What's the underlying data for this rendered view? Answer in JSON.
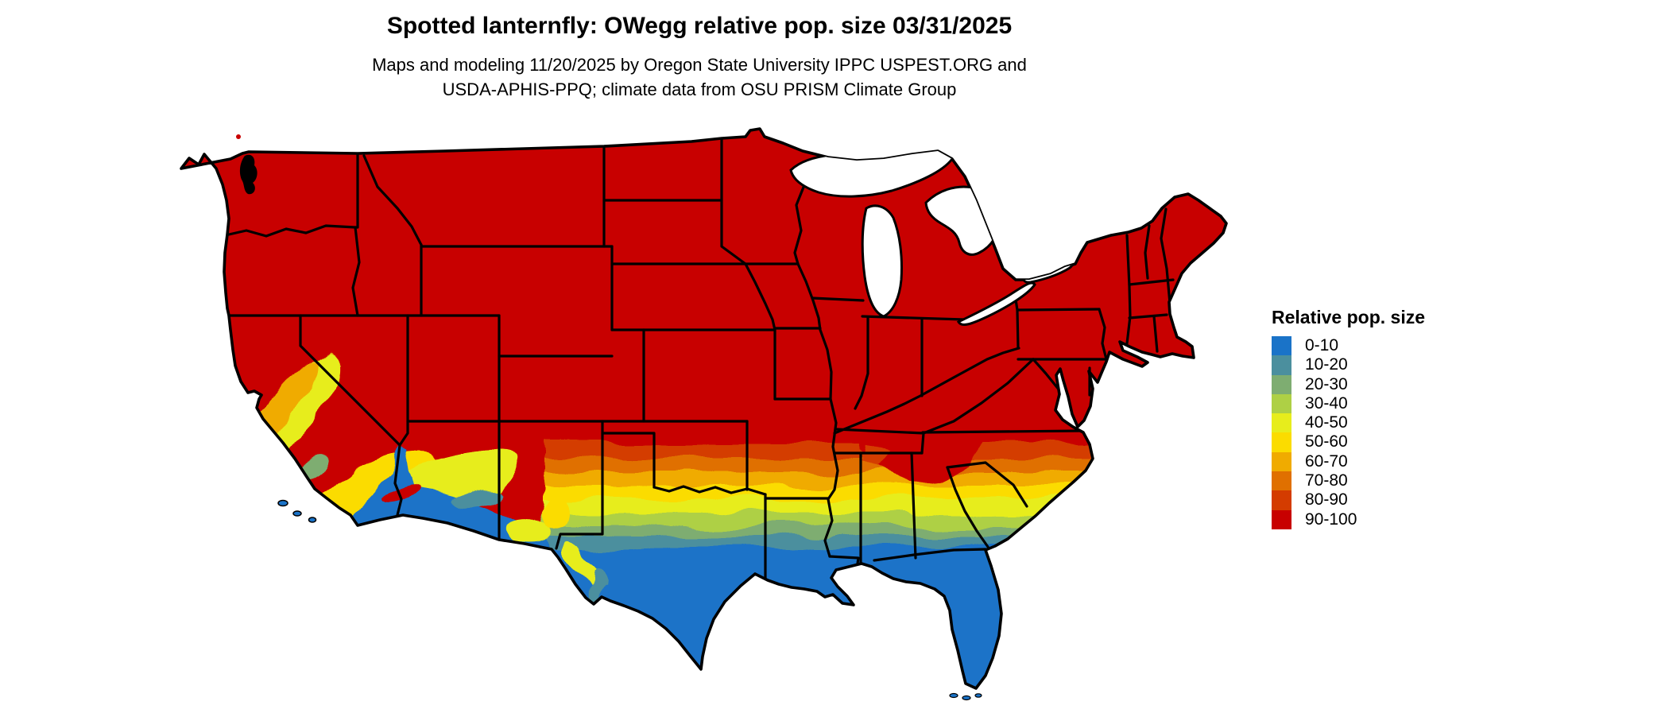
{
  "header": {
    "title": "Spotted lanternfly: OWegg relative pop. size 03/31/2025",
    "subtitle_line1": "Maps and modeling 11/20/2025 by Oregon State University IPPC USPEST.ORG and",
    "subtitle_line2": "USDA-APHIS-PPQ; climate data from OSU PRISM Climate Group"
  },
  "legend": {
    "title": "Relative pop. size",
    "items": [
      {
        "label": "0-10",
        "color": "#1a73c8"
      },
      {
        "label": "10-20",
        "color": "#4b8f9e"
      },
      {
        "label": "20-30",
        "color": "#7ead71"
      },
      {
        "label": "30-40",
        "color": "#aed045"
      },
      {
        "label": "40-50",
        "color": "#e7ed1c"
      },
      {
        "label": "50-60",
        "color": "#fbdc00"
      },
      {
        "label": "60-70",
        "color": "#f0ab00"
      },
      {
        "label": "70-80",
        "color": "#e07000"
      },
      {
        "label": "80-90",
        "color": "#d43c00"
      },
      {
        "label": "90-100",
        "color": "#c80000"
      }
    ]
  },
  "chart_data": {
    "type": "choropleth_map",
    "region": "Continental United States with state boundaries",
    "variable": "Relative pop. size",
    "classes": [
      "0-10",
      "10-20",
      "20-30",
      "30-40",
      "40-50",
      "50-60",
      "60-70",
      "70-80",
      "80-90",
      "90-100"
    ],
    "class_colors": [
      "#1a73c8",
      "#4b8f9e",
      "#7ead71",
      "#aed045",
      "#e7ed1c",
      "#fbdc00",
      "#f0ab00",
      "#e07000",
      "#d43c00",
      "#c80000"
    ],
    "visible_pattern": {
      "northern_and_central_us": "90-100 (solid red)",
      "southern_transition_belt": "bands from 80-90 down to 0-10 moving south across OK/AR/TN south to the Gulf",
      "gulf_coast_florida_south_texas": "0-10 (blue)",
      "california_central_valley": "40-70 (yellow/orange pocket)",
      "southern_california_arizona_deserts": "0-20 (blue) with 40-60 fringes",
      "west_texas_big_bend": "10-40 pocket"
    }
  }
}
